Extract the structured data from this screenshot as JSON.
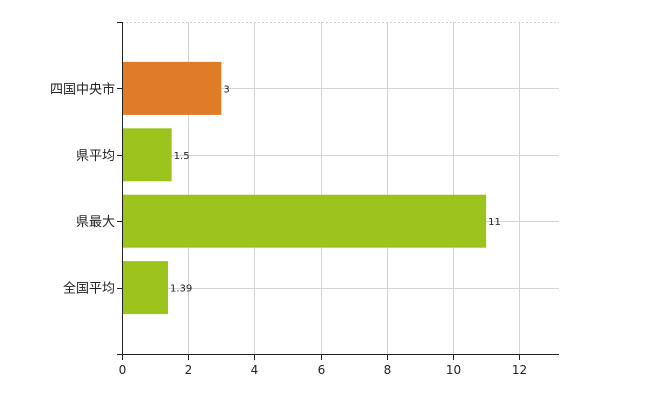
{
  "chart_data": {
    "type": "bar",
    "orientation": "horizontal",
    "categories": [
      "四国中央市",
      "県平均",
      "県最大",
      "全国平均"
    ],
    "values": [
      3,
      1.5,
      11,
      1.39
    ],
    "value_labels": [
      "3",
      "1.5",
      "11",
      "1.39"
    ],
    "bar_colors": [
      "#E07B27",
      "#9DC41C",
      "#9DC41C",
      "#9DC41C"
    ],
    "xlim": [
      0,
      13.2
    ],
    "xticks": [
      0,
      2,
      4,
      6,
      8,
      10,
      12
    ],
    "grid": true
  }
}
